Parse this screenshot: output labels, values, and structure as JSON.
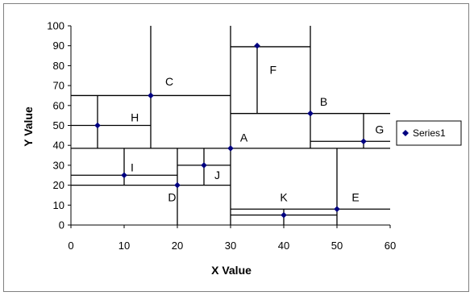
{
  "chart_data": {
    "type": "scatter",
    "title": "",
    "xlabel": "X Value",
    "ylabel": "Y Value",
    "xlim": [
      0,
      60
    ],
    "ylim": [
      0,
      100
    ],
    "xticks": [
      0,
      10,
      20,
      30,
      40,
      50,
      60
    ],
    "yticks": [
      0,
      10,
      20,
      30,
      40,
      50,
      60,
      70,
      80,
      90,
      100
    ],
    "grid": false,
    "legend": {
      "placement": "right",
      "entries": [
        "Series1"
      ]
    },
    "marker_color": "#000080",
    "series": [
      {
        "name": "Series1",
        "points": [
          {
            "x": 30,
            "y": 38.5
          },
          {
            "x": 45,
            "y": 56
          },
          {
            "x": 15,
            "y": 65
          },
          {
            "x": 20,
            "y": 20
          },
          {
            "x": 50,
            "y": 8
          },
          {
            "x": 35,
            "y": 90
          },
          {
            "x": 55,
            "y": 42
          },
          {
            "x": 5,
            "y": 50
          },
          {
            "x": 10,
            "y": 25
          },
          {
            "x": 25,
            "y": 30
          },
          {
            "x": 40,
            "y": 5
          }
        ]
      }
    ],
    "point_labels": [
      {
        "text": "A",
        "x": 32.5,
        "y": 42
      },
      {
        "text": "B",
        "x": 47.5,
        "y": 60
      },
      {
        "text": "C",
        "x": 18.5,
        "y": 70
      },
      {
        "text": "D",
        "x": 19,
        "y": 12
      },
      {
        "text": "E",
        "x": 53.5,
        "y": 12
      },
      {
        "text": "F",
        "x": 38,
        "y": 76
      },
      {
        "text": "G",
        "x": 58,
        "y": 46
      },
      {
        "text": "H",
        "x": 12,
        "y": 52
      },
      {
        "text": "I",
        "x": 11.5,
        "y": 27
      },
      {
        "text": "J",
        "x": 27.5,
        "y": 23
      },
      {
        "text": "K",
        "x": 40,
        "y": 12
      }
    ],
    "partition_lines": [
      {
        "x1": 0,
        "y1": 38.5,
        "x2": 60,
        "y2": 38.5
      },
      {
        "x1": 30,
        "y1": 0,
        "x2": 30,
        "y2": 100
      },
      {
        "x1": 15,
        "y1": 38.5,
        "x2": 15,
        "y2": 100
      },
      {
        "x1": 0,
        "y1": 65,
        "x2": 30,
        "y2": 65
      },
      {
        "x1": 5,
        "y1": 38.5,
        "x2": 5,
        "y2": 65
      },
      {
        "x1": 0,
        "y1": 50,
        "x2": 15,
        "y2": 50
      },
      {
        "x1": 0,
        "y1": 20,
        "x2": 30,
        "y2": 20
      },
      {
        "x1": 20,
        "y1": 0,
        "x2": 20,
        "y2": 38.5
      },
      {
        "x1": 10,
        "y1": 20,
        "x2": 10,
        "y2": 38.5
      },
      {
        "x1": 0,
        "y1": 25,
        "x2": 20,
        "y2": 25
      },
      {
        "x1": 25,
        "y1": 20,
        "x2": 25,
        "y2": 38.5
      },
      {
        "x1": 20,
        "y1": 30,
        "x2": 30,
        "y2": 30
      },
      {
        "x1": 30,
        "y1": 56,
        "x2": 60,
        "y2": 56
      },
      {
        "x1": 45,
        "y1": 38.5,
        "x2": 45,
        "y2": 100
      },
      {
        "x1": 30,
        "y1": 89.5,
        "x2": 45,
        "y2": 89.5
      },
      {
        "x1": 35,
        "y1": 56,
        "x2": 35,
        "y2": 89.5
      },
      {
        "x1": 45,
        "y1": 42,
        "x2": 60,
        "y2": 42
      },
      {
        "x1": 55,
        "y1": 38.5,
        "x2": 55,
        "y2": 56
      },
      {
        "x1": 50,
        "y1": 0,
        "x2": 50,
        "y2": 38.5
      },
      {
        "x1": 30,
        "y1": 8,
        "x2": 60,
        "y2": 8
      },
      {
        "x1": 30,
        "y1": 5,
        "x2": 50,
        "y2": 5
      },
      {
        "x1": 40,
        "y1": 0,
        "x2": 40,
        "y2": 8
      }
    ]
  }
}
